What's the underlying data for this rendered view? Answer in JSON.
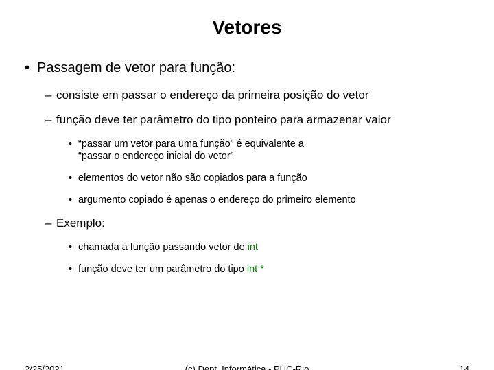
{
  "title": "Vetores",
  "b1": "Passagem de vetor para função:",
  "b1_1": "consiste em passar o endereço da primeira posição do vetor",
  "b1_2": "função deve ter parâmetro do tipo ponteiro para armazenar valor",
  "b1_2_1a": "“passar um vetor para uma função” é equivalente a",
  "b1_2_1b": "“passar o endereço inicial do vetor”",
  "b1_2_2": "elementos do vetor não são copiados para a função",
  "b1_2_3": "argumento copiado é apenas o endereço do primeiro elemento",
  "b1_3": "Exemplo:",
  "b1_3_1_pre": "chamada a função passando vetor de ",
  "b1_3_1_kw": "int",
  "b1_3_2_pre": "função deve ter um parâmetro do tipo ",
  "b1_3_2_kw": "int *",
  "keyword_color": "#008000",
  "footer_date": "2/25/2021",
  "footer_center": "(c) Dept. Informática - PUC-Rio",
  "footer_page": "14"
}
